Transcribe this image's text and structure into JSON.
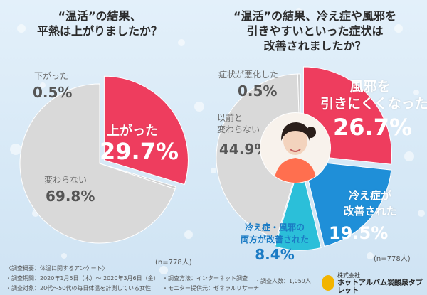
{
  "left": {
    "title_line1": "“温活”の結果、",
    "title_line2": "平熱は上がりましたか？",
    "n": "(n=778人)"
  },
  "right": {
    "title_line1": "“温活”の結果、冷え症や風邪を",
    "title_line2": "引きやすいといった症状は",
    "title_line3": "改善されましたか？",
    "n": "(n=778人)"
  },
  "chart_data": [
    {
      "type": "pie",
      "slices": [
        {
          "label": "上がった",
          "value": 29.7,
          "value_text": "29.7%",
          "color": "#ee3d5e"
        },
        {
          "label": "下がった",
          "value": 0.5,
          "value_text": "0.5%",
          "color": "#cfcfcf"
        },
        {
          "label": "変わらない",
          "value": 69.8,
          "value_text": "69.8%",
          "color": "#d9d9d9"
        }
      ]
    },
    {
      "type": "pie",
      "slices": [
        {
          "label": "風邪を引きにくくなった",
          "label_line1": "風邪を",
          "label_line2": "引きにくくなった",
          "value": 26.7,
          "value_text": "26.7%",
          "color": "#ee3d5e"
        },
        {
          "label": "冷え症が改善された",
          "label_line1": "冷え症が",
          "label_line2": "改善された",
          "value": 19.5,
          "value_text": "19.5%",
          "color": "#1f8fd8"
        },
        {
          "label": "冷え症・風邪の両方が改善された",
          "label_line1": "冷え症・風邪の",
          "label_line2": "両方が改善された",
          "value": 8.4,
          "value_text": "8.4%",
          "color": "#2bbfd9"
        },
        {
          "label": "以前と変わらない",
          "label_line1": "以前と",
          "label_line2": "変わらない",
          "value": 44.9,
          "value_text": "44.9%",
          "color": "#d9d9d9"
        },
        {
          "label": "症状が悪化した",
          "value": 0.5,
          "value_text": "0.5%",
          "color": "#cfcfcf"
        }
      ]
    }
  ],
  "footer": {
    "heading": "〈調査概要：体温に関するアンケート〉",
    "period": "・調査期間：2020年1月5日（木）～ 2020年3月6日（金）",
    "target": "・調査対象：20代～50代の毎日体温を計測している女性",
    "method": "・調査方法：インターネット調査",
    "monitor": "・モニター提供元：ゼネラルリサーチ",
    "count": "・調査人数：1,059人",
    "logo_sub": "株式会社",
    "logo_main": "ホットアルバム炭酸泉タブレット"
  }
}
